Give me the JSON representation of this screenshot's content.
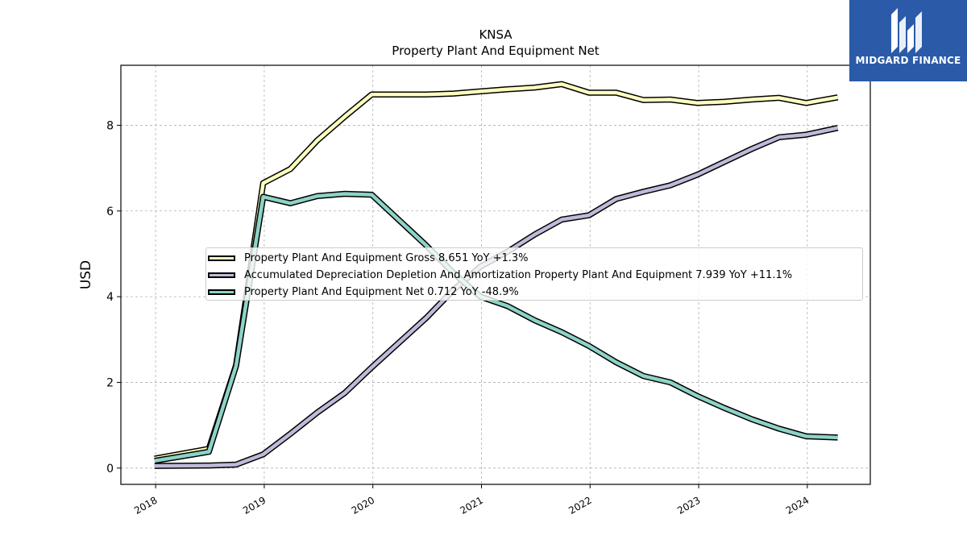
{
  "chart_data": {
    "type": "line",
    "title": "KNSA",
    "subtitle": "Property Plant And Equipment Net",
    "ylabel": "USD",
    "xlabel": "",
    "xlim": [
      2017.68,
      2024.58
    ],
    "ylim": [
      -0.38,
      9.4
    ],
    "x_ticks": [
      "2018",
      "2019",
      "2020",
      "2021",
      "2022",
      "2023",
      "2024"
    ],
    "y_ticks": [
      "0",
      "2",
      "4",
      "6",
      "8"
    ],
    "grid": true,
    "legend_position": "center-right",
    "x": [
      2017.99,
      2018.49,
      2018.74,
      2018.99,
      2019.24,
      2019.49,
      2019.74,
      2019.99,
      2020.49,
      2020.74,
      2020.99,
      2021.24,
      2021.49,
      2021.74,
      2021.99,
      2022.24,
      2022.49,
      2022.74,
      2022.99,
      2023.24,
      2023.49,
      2023.74,
      2023.99,
      2024.28
    ],
    "series": [
      {
        "name": "Property Plant And Equipment Gross",
        "legend": "Property Plant And Equipment Gross  8.651 YoY +1.3%",
        "color": "#ffffbf",
        "values": [
          0.22,
          0.45,
          2.4,
          6.65,
          6.98,
          7.65,
          8.2,
          8.72,
          8.72,
          8.74,
          8.79,
          8.84,
          8.88,
          8.96,
          8.76,
          8.76,
          8.59,
          8.6,
          8.52,
          8.55,
          8.6,
          8.64,
          8.52,
          8.651
        ]
      },
      {
        "name": "Accumulated Depreciation Depletion And Amortization Property Plant And Equipment",
        "legend": "Accumulated Depreciation Depletion And Amortization Property Plant And Equipment  7.939 YoY +11.1%",
        "color": "#bebada",
        "values": [
          0.05,
          0.06,
          0.08,
          0.32,
          0.8,
          1.3,
          1.75,
          2.35,
          3.5,
          4.15,
          4.7,
          5.05,
          5.45,
          5.8,
          5.9,
          6.28,
          6.45,
          6.6,
          6.85,
          7.15,
          7.45,
          7.72,
          7.78,
          7.939
        ]
      },
      {
        "name": "Property Plant And Equipment Net",
        "legend": "Property Plant And Equipment Net  0.712 YoY -48.9%",
        "color": "#8dd3c7",
        "values": [
          0.17,
          0.38,
          2.38,
          6.33,
          6.18,
          6.35,
          6.4,
          6.38,
          5.2,
          4.56,
          4.0,
          3.78,
          3.45,
          3.17,
          2.85,
          2.47,
          2.15,
          2.0,
          1.68,
          1.4,
          1.14,
          0.92,
          0.74,
          0.712
        ]
      }
    ]
  },
  "brand": {
    "name": "MIDGARD FINANCE",
    "color": "#2b5ba8"
  }
}
